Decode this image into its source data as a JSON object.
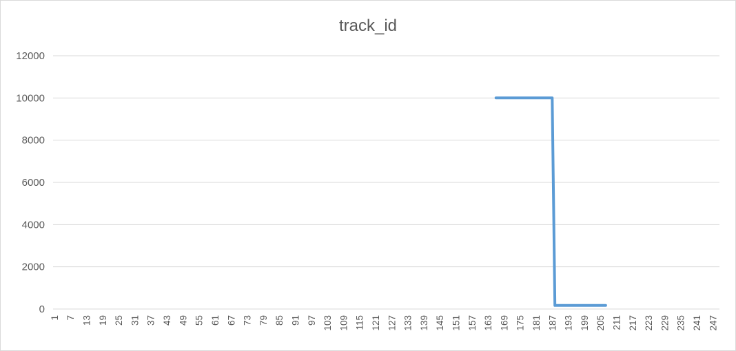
{
  "chart_data": {
    "type": "line",
    "title": "track_id",
    "xlabel": "",
    "ylabel": "",
    "x_range": [
      1,
      249
    ],
    "x_tick_labels": [
      "1",
      "7",
      "13",
      "19",
      "25",
      "31",
      "37",
      "43",
      "49",
      "55",
      "61",
      "67",
      "73",
      "79",
      "85",
      "91",
      "97",
      "103",
      "109",
      "115",
      "121",
      "127",
      "133",
      "139",
      "145",
      "151",
      "157",
      "163",
      "169",
      "175",
      "181",
      "187",
      "193",
      "199",
      "205",
      "211",
      "217",
      "223",
      "229",
      "235",
      "241",
      "247"
    ],
    "ylim": [
      0,
      12000
    ],
    "y_ticks": [
      0,
      2000,
      4000,
      6000,
      8000,
      10000,
      12000
    ],
    "grid": "horizontal",
    "legend": "none",
    "series": [
      {
        "color": "#5b9bd5",
        "x": [
          166,
          187,
          188,
          207
        ],
        "y": [
          10000,
          10000,
          170,
          170
        ]
      }
    ]
  }
}
